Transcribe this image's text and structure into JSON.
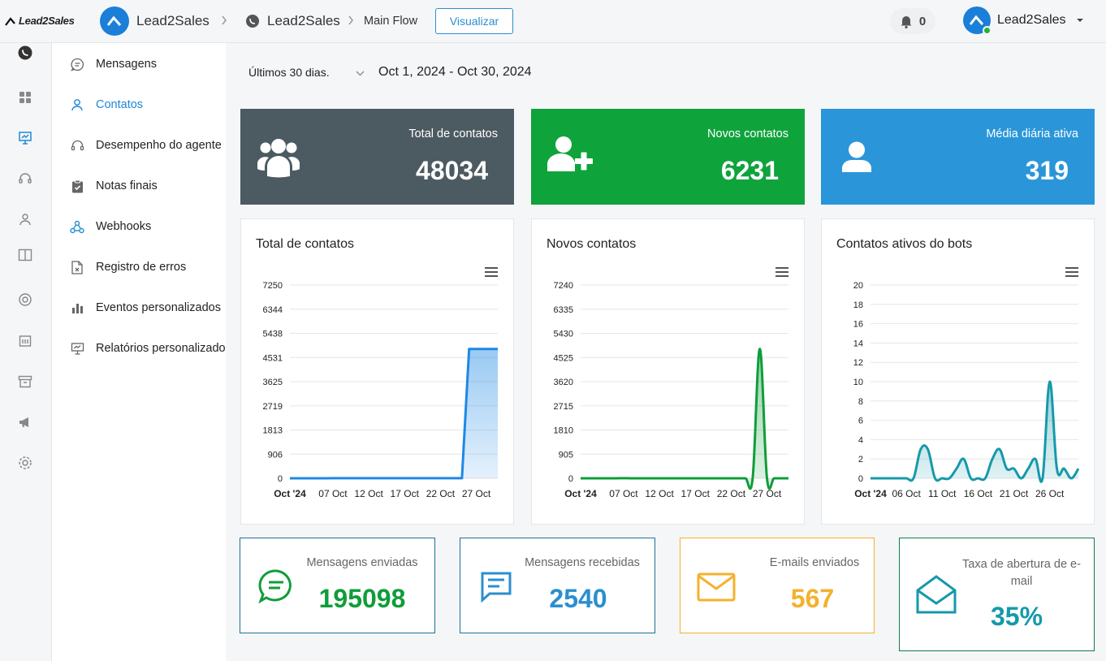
{
  "header": {
    "logo_text": "Lead2Sales",
    "breadcrumb": [
      {
        "label": "Lead2Sales"
      },
      {
        "label": "Lead2Sales"
      },
      {
        "label": "Main Flow"
      }
    ],
    "view_button": "Visualizar",
    "notifications_count": "0",
    "user_name": "Lead2Sales"
  },
  "submenu": {
    "items": [
      {
        "label": "Mensagens",
        "icon": "chat-bubble-icon"
      },
      {
        "label": "Contatos",
        "icon": "user-icon",
        "active": true
      },
      {
        "label": "Desempenho do agente",
        "icon": "headset-icon"
      },
      {
        "label": "Notas finais",
        "icon": "clipboard-check-icon"
      },
      {
        "label": "Webhooks",
        "icon": "webhook-icon"
      },
      {
        "label": "Registro de erros",
        "icon": "file-error-icon"
      },
      {
        "label": "Eventos personalizados",
        "icon": "bar-chart-icon"
      },
      {
        "label": "Relatórios personalizado",
        "icon": "presentation-icon"
      }
    ]
  },
  "filter": {
    "period": "Últimos 30 dias.",
    "range": "Oct 1, 2024 - Oct 30, 2024"
  },
  "stats": [
    {
      "label": "Total de contatos",
      "value": "48034",
      "color": "#4c5a61",
      "icon": "users-group-icon"
    },
    {
      "label": "Novos contatos",
      "value": "6231",
      "color": "#0fa33c",
      "icon": "user-plus-icon"
    },
    {
      "label": "Média diária ativa",
      "value": "319",
      "color": "#2a96d9",
      "icon": "user-icon"
    }
  ],
  "charts": [
    {
      "title": "Total de contatos"
    },
    {
      "title": "Novos contatos"
    },
    {
      "title": "Contatos ativos do bots"
    }
  ],
  "chart_data": [
    {
      "type": "area",
      "title": "Total de contatos",
      "color": "#1e88e5",
      "yticks": [
        "7250",
        "6344",
        "5438",
        "4531",
        "3625",
        "2719",
        "1813",
        "906",
        "0"
      ],
      "ylim": [
        0,
        7250
      ],
      "xlim": [
        1,
        30
      ],
      "xticks": [
        {
          "x": 1,
          "label": "Oct '24",
          "bold": true
        },
        {
          "x": 7,
          "label": "07 Oct"
        },
        {
          "x": 12,
          "label": "12 Oct"
        },
        {
          "x": 17,
          "label": "17 Oct"
        },
        {
          "x": 22,
          "label": "22 Oct"
        },
        {
          "x": 27,
          "label": "27 Oct"
        }
      ],
      "x": [
        1,
        2,
        3,
        4,
        5,
        6,
        7,
        8,
        9,
        10,
        11,
        12,
        13,
        14,
        15,
        16,
        17,
        18,
        19,
        20,
        21,
        22,
        23,
        24,
        25,
        26,
        27,
        28,
        29,
        30
      ],
      "values": [
        0,
        0,
        0,
        0,
        0,
        0,
        5,
        5,
        5,
        5,
        5,
        5,
        5,
        5,
        5,
        5,
        5,
        5,
        5,
        5,
        5,
        5,
        5,
        5,
        5,
        4850,
        4850,
        4850,
        4850,
        4850
      ],
      "curve": "linear"
    },
    {
      "type": "area",
      "title": "Novos contatos",
      "color": "#0f9d3a",
      "yticks": [
        "7240",
        "6335",
        "5430",
        "4525",
        "3620",
        "2715",
        "1810",
        "905",
        "0"
      ],
      "ylim": [
        0,
        7240
      ],
      "xlim": [
        1,
        30
      ],
      "xticks": [
        {
          "x": 1,
          "label": "Oct '24",
          "bold": true
        },
        {
          "x": 7,
          "label": "07 Oct"
        },
        {
          "x": 12,
          "label": "12 Oct"
        },
        {
          "x": 17,
          "label": "17 Oct"
        },
        {
          "x": 22,
          "label": "22 Oct"
        },
        {
          "x": 27,
          "label": "27 Oct"
        }
      ],
      "x": [
        1,
        2,
        3,
        4,
        5,
        6,
        7,
        8,
        9,
        10,
        11,
        12,
        13,
        14,
        15,
        16,
        17,
        18,
        19,
        20,
        21,
        22,
        23,
        24,
        25,
        26,
        27,
        28,
        29,
        30
      ],
      "values": [
        0,
        0,
        0,
        0,
        0,
        0,
        5,
        0,
        0,
        0,
        0,
        0,
        0,
        0,
        0,
        0,
        0,
        0,
        0,
        0,
        0,
        0,
        0,
        0,
        0,
        4850,
        0,
        0,
        0,
        0
      ],
      "curve": "smooth"
    },
    {
      "type": "area",
      "title": "Contatos ativos do bots",
      "color": "#1699aa",
      "yticks": [
        "20",
        "18",
        "16",
        "14",
        "12",
        "10",
        "8",
        "6",
        "4",
        "2",
        "0"
      ],
      "ylim": [
        0,
        20
      ],
      "xlim": [
        1,
        30
      ],
      "xticks": [
        {
          "x": 1,
          "label": "Oct '24",
          "bold": true
        },
        {
          "x": 6,
          "label": "06 Oct"
        },
        {
          "x": 11,
          "label": "11 Oct"
        },
        {
          "x": 16,
          "label": "16 Oct"
        },
        {
          "x": 21,
          "label": "21 Oct"
        },
        {
          "x": 26,
          "label": "26 Oct"
        }
      ],
      "x": [
        1,
        2,
        3,
        4,
        5,
        6,
        7,
        8,
        9,
        10,
        11,
        12,
        13,
        14,
        15,
        16,
        17,
        18,
        19,
        20,
        21,
        22,
        23,
        24,
        25,
        26,
        27,
        28,
        29,
        30
      ],
      "values": [
        0,
        0,
        0,
        0,
        0,
        0,
        0,
        3,
        3,
        0,
        0,
        0,
        1,
        2,
        0,
        0,
        0,
        2,
        3,
        1,
        1,
        0,
        1,
        2,
        0,
        10,
        1,
        1,
        0,
        1
      ],
      "curve": "smooth"
    }
  ],
  "kpis": [
    {
      "label": "Mensagens enviadas",
      "value": "195098",
      "color": "#0f9d3a",
      "border": "#1f6f97",
      "icon": "chat-lines-icon"
    },
    {
      "label": "Mensagens recebidas",
      "value": "2540",
      "color": "#2a8fcf",
      "border": "#1f6f97",
      "icon": "message-square-icon"
    },
    {
      "label": "E-mails enviados",
      "value": "567",
      "color": "#f4b12e",
      "border": "#f4b12e",
      "icon": "envelope-icon"
    },
    {
      "label": "Taxa de abertura de e-mail",
      "value": "35%",
      "color": "#1699aa",
      "border": "#147a4e",
      "icon": "envelope-open-icon"
    }
  ]
}
